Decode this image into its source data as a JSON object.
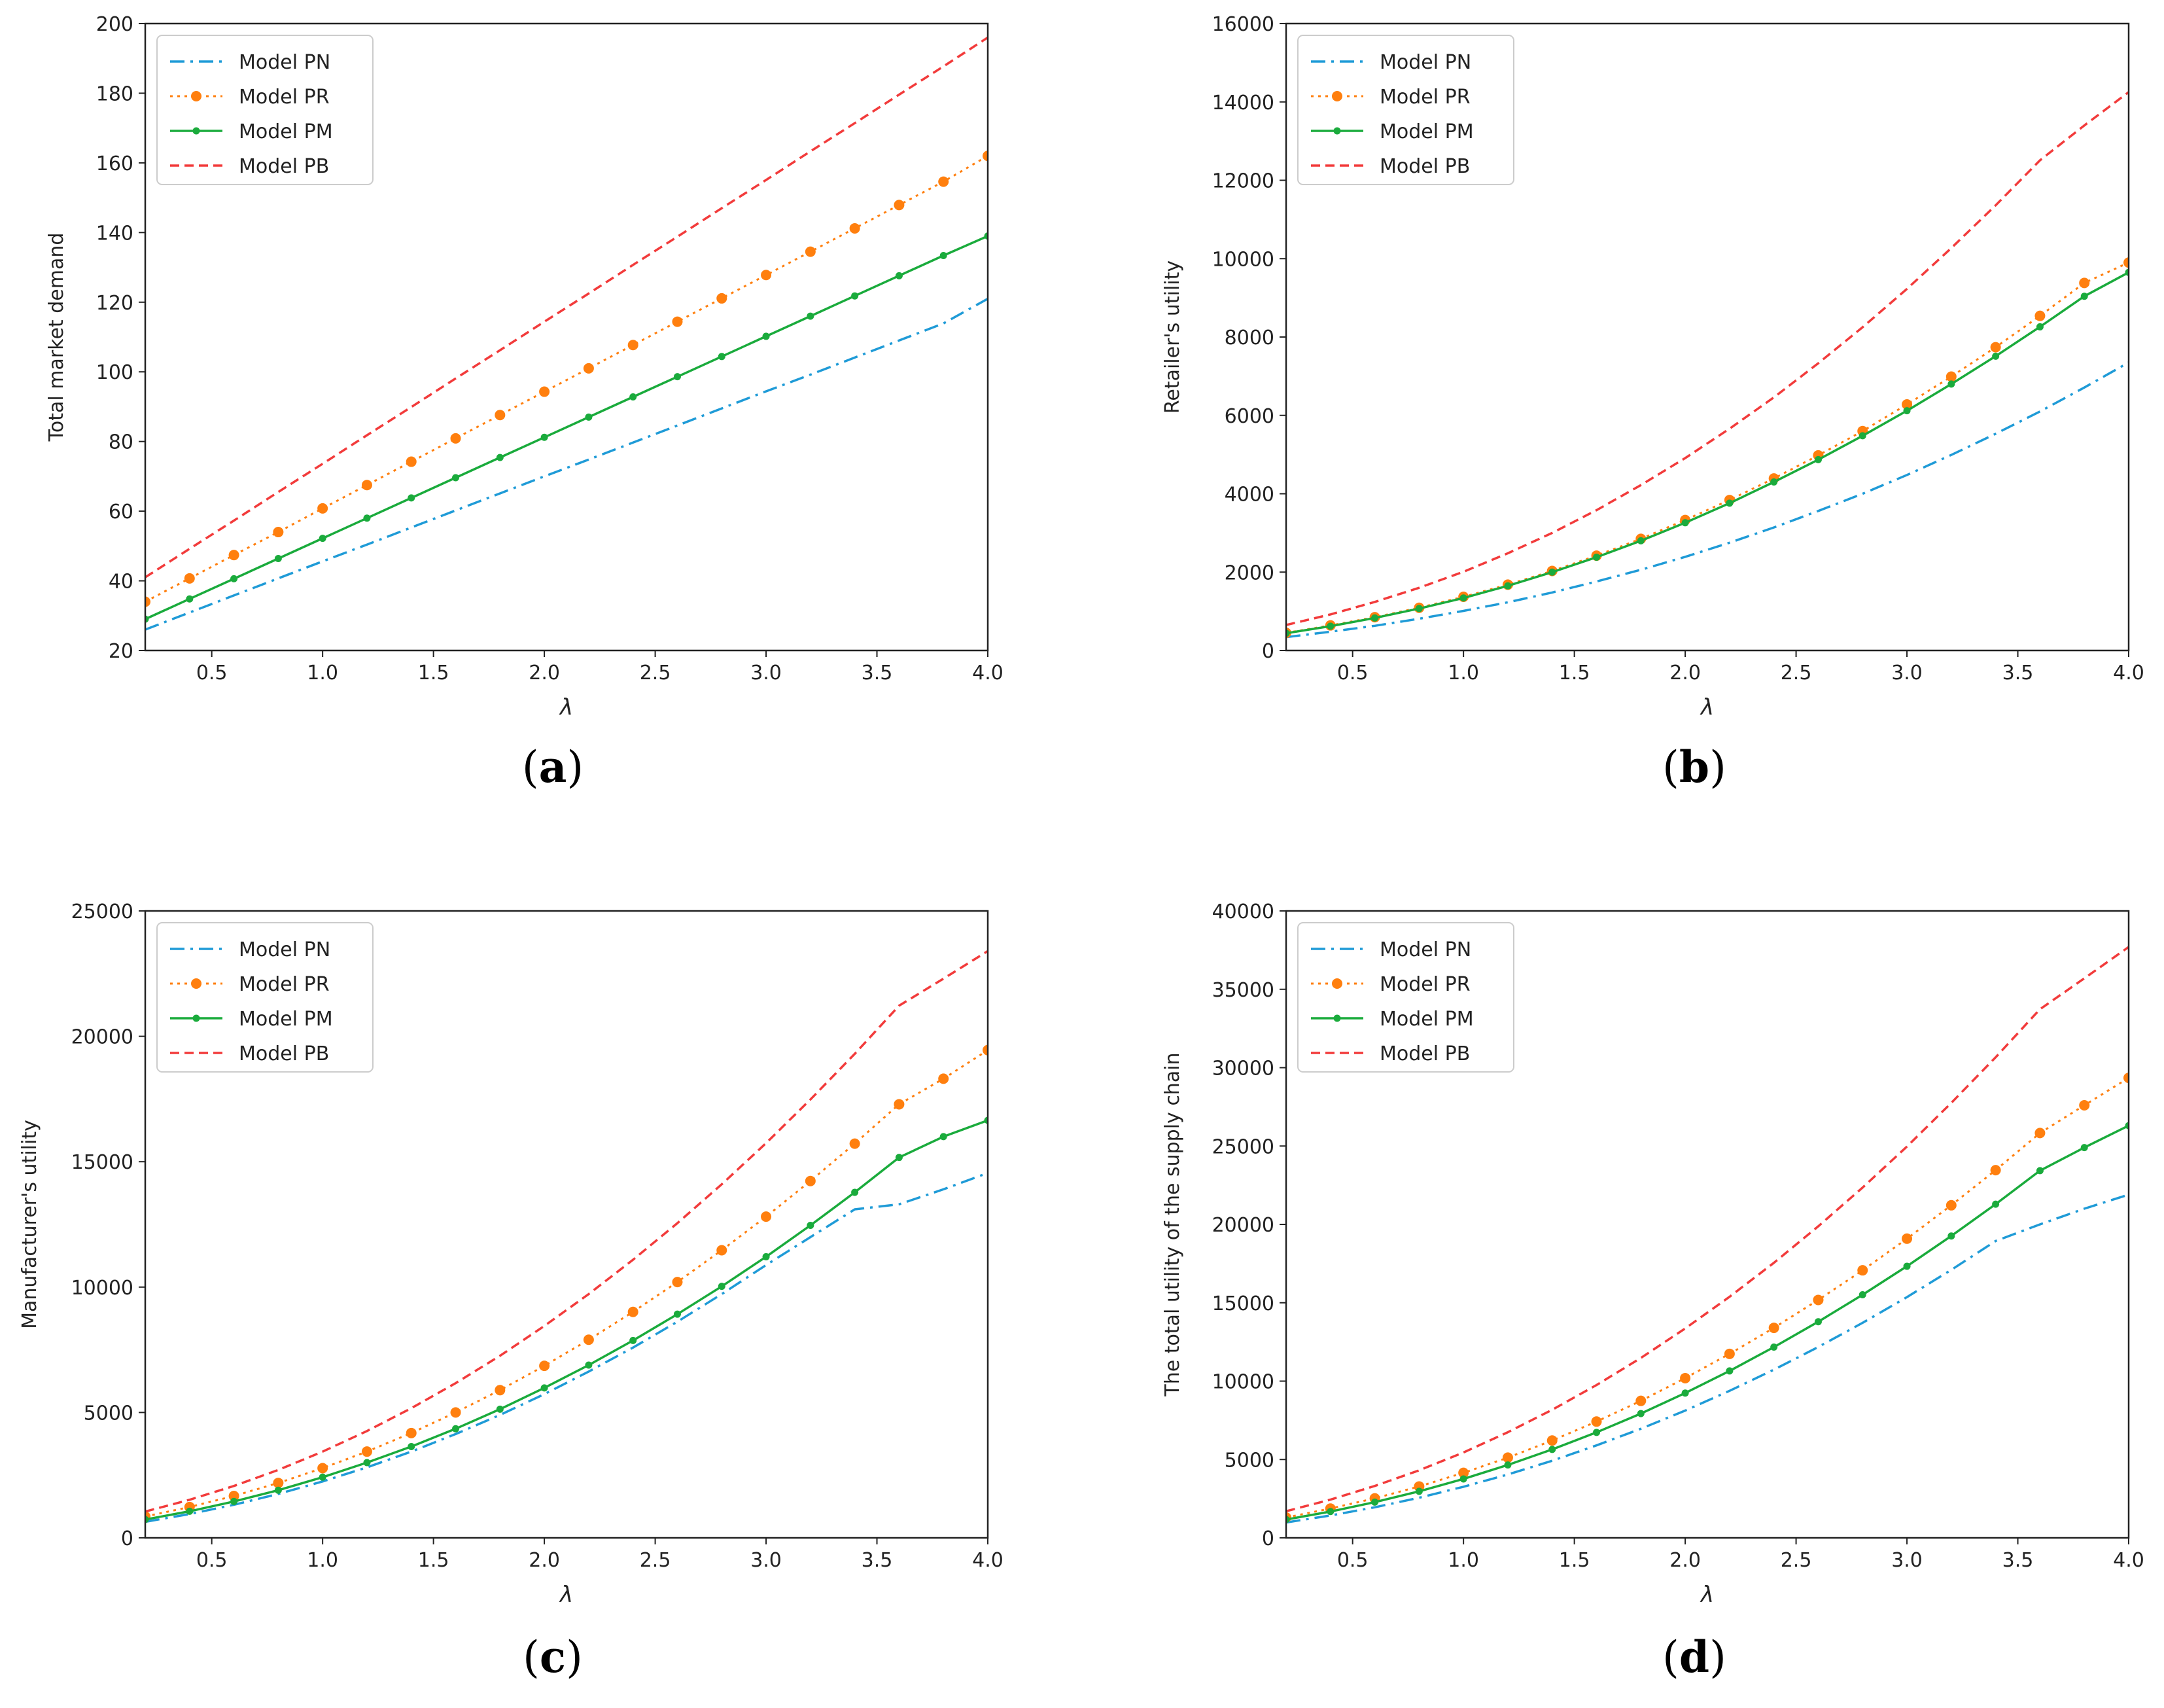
{
  "chart_data": [
    {
      "type": "line",
      "panel": "a",
      "caption": "(a)",
      "caption_open": "(",
      "caption_letter": "a",
      "caption_close": ")",
      "xlabel": "λ",
      "ylabel": "Total market demand",
      "xlim": [
        0.2,
        4.0
      ],
      "ylim": [
        20,
        200
      ],
      "xticks": [
        0.5,
        1.0,
        1.5,
        2.0,
        2.5,
        3.0,
        3.5,
        4.0
      ],
      "xtick_labels": [
        "0.5",
        "1.0",
        "1.5",
        "2.0",
        "2.5",
        "3.0",
        "3.5",
        "4.0"
      ],
      "yticks": [
        20,
        40,
        60,
        80,
        100,
        120,
        140,
        160,
        180,
        200
      ],
      "ytick_labels": [
        "20",
        "40",
        "60",
        "80",
        "100",
        "120",
        "140",
        "160",
        "180",
        "200"
      ],
      "legend_position": "top-left",
      "x": [
        0.2,
        0.4,
        0.6,
        0.8,
        1.0,
        1.2,
        1.4,
        1.6,
        1.8,
        2.0,
        2.2,
        2.4,
        2.6,
        2.8,
        3.0,
        3.2,
        3.4,
        3.6,
        3.8,
        4.0
      ],
      "series": [
        {
          "name": "Model PN",
          "color": "#1f9bd7",
          "style": "dashdot",
          "values": [
            26.0,
            30.9,
            35.8,
            40.7,
            45.6,
            50.4,
            55.3,
            60.2,
            65.1,
            70.0,
            74.8,
            79.7,
            84.6,
            89.5,
            94.4,
            99.2,
            104.1,
            109.0,
            113.9,
            121.0
          ]
        },
        {
          "name": "Model PR",
          "color": "#ff7f0e",
          "style": "dotted-markers",
          "values": [
            34.0,
            40.7,
            47.4,
            54.0,
            60.8,
            67.5,
            74.2,
            80.9,
            87.6,
            94.3,
            101.0,
            107.7,
            114.4,
            121.1,
            127.8,
            134.5,
            141.2,
            147.9,
            154.6,
            162.0
          ]
        },
        {
          "name": "Model PM",
          "color": "#1aab3c",
          "style": "solid-markers",
          "values": [
            29.0,
            34.8,
            40.6,
            46.4,
            52.2,
            58.0,
            63.8,
            69.6,
            75.4,
            81.2,
            87.0,
            92.8,
            98.6,
            104.4,
            110.2,
            116.0,
            121.8,
            127.6,
            133.4,
            139.0
          ]
        },
        {
          "name": "Model PB",
          "color": "#f23b3b",
          "style": "dashed",
          "values": [
            41.0,
            49.2,
            57.3,
            65.5,
            73.6,
            81.8,
            89.9,
            98.1,
            106.2,
            114.4,
            122.5,
            130.7,
            138.8,
            147.0,
            155.1,
            163.3,
            171.4,
            179.6,
            187.7,
            196.0
          ]
        }
      ]
    },
    {
      "type": "line",
      "panel": "b",
      "caption": "(b)",
      "caption_open": "(",
      "caption_letter": "b",
      "caption_close": ")",
      "xlabel": "λ",
      "ylabel": "Retailer's utility",
      "xlim": [
        0.2,
        4.0
      ],
      "ylim": [
        0,
        16000
      ],
      "xticks": [
        0.5,
        1.0,
        1.5,
        2.0,
        2.5,
        3.0,
        3.5,
        4.0
      ],
      "xtick_labels": [
        "0.5",
        "1.0",
        "1.5",
        "2.0",
        "2.5",
        "3.0",
        "3.5",
        "4.0"
      ],
      "yticks": [
        0,
        2000,
        4000,
        6000,
        8000,
        10000,
        12000,
        14000,
        16000
      ],
      "ytick_labels": [
        "0",
        "2000",
        "4000",
        "6000",
        "8000",
        "10000",
        "12000",
        "14000",
        "16000"
      ],
      "legend_position": "top-left",
      "x": [
        0.2,
        0.4,
        0.6,
        0.8,
        1.0,
        1.2,
        1.4,
        1.6,
        1.8,
        2.0,
        2.2,
        2.4,
        2.6,
        2.8,
        3.0,
        3.2,
        3.4,
        3.6,
        3.8,
        4.0
      ],
      "series": [
        {
          "name": "Model PN",
          "color": "#1f9bd7",
          "style": "dashdot",
          "values": [
            340,
            480,
            630,
            810,
            1010,
            1230,
            1480,
            1760,
            2060,
            2390,
            2750,
            3140,
            3560,
            4000,
            4480,
            4990,
            5530,
            6100,
            6710,
            7350
          ]
        },
        {
          "name": "Model PR",
          "color": "#ff7f0e",
          "style": "dotted-markers",
          "values": [
            450,
            640,
            850,
            1090,
            1370,
            1680,
            2030,
            2420,
            2850,
            3330,
            3840,
            4390,
            4980,
            5600,
            6280,
            6990,
            7740,
            8540,
            9380,
            9900
          ]
        },
        {
          "name": "Model PM",
          "color": "#1aab3c",
          "style": "solid-markers",
          "values": [
            440,
            620,
            830,
            1070,
            1340,
            1650,
            2000,
            2380,
            2800,
            3260,
            3760,
            4300,
            4870,
            5480,
            6120,
            6800,
            7510,
            8260,
            9040,
            9650
          ]
        },
        {
          "name": "Model PB",
          "color": "#f23b3b",
          "style": "dashed",
          "values": [
            650,
            920,
            1240,
            1600,
            2010,
            2480,
            3000,
            3580,
            4220,
            4910,
            5660,
            6460,
            7330,
            8250,
            9230,
            10270,
            11360,
            12510,
            13400,
            14250
          ]
        }
      ]
    },
    {
      "type": "line",
      "panel": "c",
      "caption": "(c)",
      "caption_open": "(",
      "caption_letter": "c",
      "caption_close": ")",
      "xlabel": "λ",
      "ylabel": "Manufacturer's utility",
      "xlim": [
        0.2,
        4.0
      ],
      "ylim": [
        0,
        25000
      ],
      "xticks": [
        0.5,
        1.0,
        1.5,
        2.0,
        2.5,
        3.0,
        3.5,
        4.0
      ],
      "xtick_labels": [
        "0.5",
        "1.0",
        "1.5",
        "2.0",
        "2.5",
        "3.0",
        "3.5",
        "4.0"
      ],
      "yticks": [
        0,
        5000,
        10000,
        15000,
        20000,
        25000
      ],
      "ytick_labels": [
        "0",
        "5000",
        "10000",
        "15000",
        "20000",
        "25000"
      ],
      "legend_position": "top-left",
      "x": [
        0.2,
        0.4,
        0.6,
        0.8,
        1.0,
        1.2,
        1.4,
        1.6,
        1.8,
        2.0,
        2.2,
        2.4,
        2.6,
        2.8,
        3.0,
        3.2,
        3.4,
        3.6,
        3.8,
        4.0
      ],
      "series": [
        {
          "name": "Model PN",
          "color": "#1f9bd7",
          "style": "dashdot",
          "values": [
            640,
            950,
            1320,
            1750,
            2250,
            2810,
            3440,
            4140,
            4900,
            5730,
            6630,
            7590,
            8620,
            9720,
            10880,
            11990,
            13100,
            13300,
            13900,
            14550
          ]
        },
        {
          "name": "Model PR",
          "color": "#ff7f0e",
          "style": "dotted-markers",
          "values": [
            850,
            1230,
            1670,
            2190,
            2780,
            3440,
            4180,
            5000,
            5890,
            6860,
            7900,
            9010,
            10200,
            11470,
            12810,
            14230,
            15720,
            17290,
            18310,
            19450
          ]
        },
        {
          "name": "Model PM",
          "color": "#1aab3c",
          "style": "solid-markers",
          "values": [
            730,
            1060,
            1450,
            1900,
            2420,
            3000,
            3640,
            4350,
            5130,
            5980,
            6890,
            7870,
            8920,
            10030,
            11210,
            12460,
            13780,
            15170,
            16000,
            16650
          ]
        },
        {
          "name": "Model PB",
          "color": "#f23b3b",
          "style": "dashed",
          "values": [
            1050,
            1520,
            2070,
            2710,
            3440,
            4260,
            5170,
            6170,
            7260,
            8450,
            9720,
            11090,
            12550,
            14100,
            15740,
            17480,
            19300,
            21220,
            22300,
            23400
          ]
        }
      ]
    },
    {
      "type": "line",
      "panel": "d",
      "caption": "(d)",
      "caption_open": "(",
      "caption_letter": "d",
      "caption_close": ")",
      "xlabel": "λ",
      "ylabel": "The total utility of the supply chain",
      "xlim": [
        0.2,
        4.0
      ],
      "ylim": [
        0,
        40000
      ],
      "xticks": [
        0.5,
        1.0,
        1.5,
        2.0,
        2.5,
        3.0,
        3.5,
        4.0
      ],
      "xtick_labels": [
        "0.5",
        "1.0",
        "1.5",
        "2.0",
        "2.5",
        "3.0",
        "3.5",
        "4.0"
      ],
      "yticks": [
        0,
        5000,
        10000,
        15000,
        20000,
        25000,
        30000,
        35000,
        40000
      ],
      "ytick_labels": [
        "0",
        "5000",
        "10000",
        "15000",
        "20000",
        "25000",
        "30000",
        "35000",
        "40000"
      ],
      "legend_position": "top-left",
      "x": [
        0.2,
        0.4,
        0.6,
        0.8,
        1.0,
        1.2,
        1.4,
        1.6,
        1.8,
        2.0,
        2.2,
        2.4,
        2.6,
        2.8,
        3.0,
        3.2,
        3.4,
        3.6,
        3.8,
        4.0
      ],
      "series": [
        {
          "name": "Model PN",
          "color": "#1f9bd7",
          "style": "dashdot",
          "values": [
            980,
            1430,
            1950,
            2560,
            3260,
            4040,
            4920,
            5900,
            6960,
            8120,
            9380,
            10730,
            12180,
            13720,
            15360,
            17100,
            18940,
            20000,
            21000,
            21900
          ]
        },
        {
          "name": "Model PR",
          "color": "#ff7f0e",
          "style": "dotted-markers",
          "values": [
            1300,
            1870,
            2520,
            3280,
            4150,
            5120,
            6210,
            7420,
            8740,
            10190,
            11740,
            13400,
            15180,
            17070,
            19090,
            21220,
            23460,
            25830,
            27600,
            29350
          ]
        },
        {
          "name": "Model PM",
          "color": "#1aab3c",
          "style": "solid-markers",
          "values": [
            1170,
            1680,
            2280,
            2970,
            3760,
            4650,
            5640,
            6730,
            7930,
            9240,
            10650,
            12170,
            13790,
            15510,
            17330,
            19260,
            21290,
            23430,
            24900,
            26300
          ]
        },
        {
          "name": "Model PB",
          "color": "#f23b3b",
          "style": "dashed",
          "values": [
            1700,
            2440,
            3310,
            4310,
            5450,
            6740,
            8170,
            9750,
            11480,
            13360,
            15380,
            17550,
            19880,
            22350,
            24970,
            27750,
            30660,
            33730,
            35700,
            37700
          ]
        }
      ]
    }
  ]
}
